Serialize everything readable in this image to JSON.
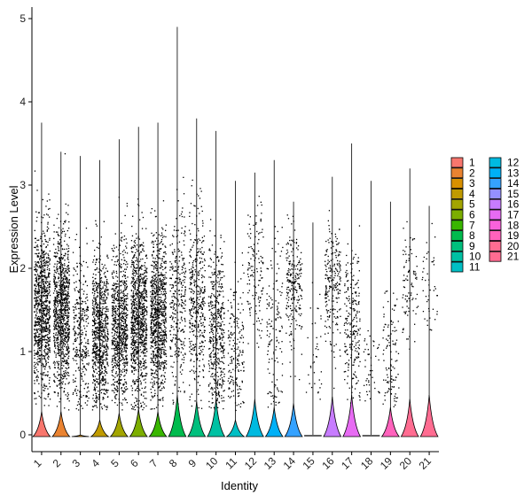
{
  "chart_data": {
    "type": "violin",
    "xlabel": "Identity",
    "ylabel": "Expression Level",
    "ylim": [
      -0.25,
      5.2
    ],
    "yticks": [
      0,
      1,
      2,
      3,
      4,
      5
    ],
    "categories": [
      "1",
      "2",
      "3",
      "4",
      "5",
      "6",
      "7",
      "8",
      "9",
      "10",
      "11",
      "12",
      "13",
      "14",
      "15",
      "16",
      "17",
      "18",
      "19",
      "20",
      "21"
    ],
    "series": [
      {
        "name": "1",
        "color": "#F8766D",
        "max": 3.75,
        "zero_bulb": 0.3,
        "density": 1.0,
        "center": 1.5,
        "spread": 0.8
      },
      {
        "name": "2",
        "color": "#EA8331",
        "max": 3.4,
        "zero_bulb": 0.3,
        "density": 1.0,
        "center": 1.5,
        "spread": 0.8
      },
      {
        "name": "3",
        "color": "#D89000",
        "max": 3.35,
        "zero_bulb": 0.02,
        "density": 0.35,
        "center": 1.2,
        "spread": 0.8
      },
      {
        "name": "4",
        "color": "#C09B00",
        "max": 3.3,
        "zero_bulb": 0.2,
        "density": 0.85,
        "center": 1.2,
        "spread": 0.8
      },
      {
        "name": "5",
        "color": "#A3A500",
        "max": 3.55,
        "zero_bulb": 0.28,
        "density": 0.85,
        "center": 1.3,
        "spread": 0.8
      },
      {
        "name": "6",
        "color": "#7CAE00",
        "max": 3.7,
        "zero_bulb": 0.33,
        "density": 1.0,
        "center": 1.4,
        "spread": 0.8
      },
      {
        "name": "7",
        "color": "#39B600",
        "max": 3.75,
        "zero_bulb": 0.3,
        "density": 0.95,
        "center": 1.4,
        "spread": 0.8
      },
      {
        "name": "8",
        "color": "#00BB4E",
        "max": 4.9,
        "zero_bulb": 0.5,
        "density": 0.35,
        "center": 1.6,
        "spread": 0.9
      },
      {
        "name": "9",
        "color": "#00BF7D",
        "max": 3.8,
        "zero_bulb": 0.42,
        "density": 0.45,
        "center": 1.6,
        "spread": 0.9
      },
      {
        "name": "10",
        "color": "#00C1A3",
        "max": 3.65,
        "zero_bulb": 0.45,
        "density": 0.5,
        "center": 1.2,
        "spread": 0.9
      },
      {
        "name": "11",
        "color": "#00BFC4",
        "max": 3.05,
        "zero_bulb": 0.2,
        "density": 0.2,
        "center": 1.0,
        "spread": 0.8
      },
      {
        "name": "12",
        "color": "#00BAE0",
        "max": 3.15,
        "zero_bulb": 0.45,
        "density": 0.15,
        "center": 1.9,
        "spread": 0.7
      },
      {
        "name": "13",
        "color": "#00B0F6",
        "max": 3.3,
        "zero_bulb": 0.35,
        "density": 0.15,
        "center": 1.2,
        "spread": 0.9
      },
      {
        "name": "14",
        "color": "#35A2FF",
        "max": 2.8,
        "zero_bulb": 0.4,
        "density": 0.25,
        "center": 1.8,
        "spread": 0.6
      },
      {
        "name": "15",
        "color": "#9590FF",
        "max": 2.55,
        "zero_bulb": 0.0,
        "density": 0.04,
        "center": 1.0,
        "spread": 0.8
      },
      {
        "name": "16",
        "color": "#C77CFF",
        "max": 3.1,
        "zero_bulb": 0.48,
        "density": 0.25,
        "center": 1.8,
        "spread": 0.6
      },
      {
        "name": "17",
        "color": "#E76BF3",
        "max": 3.5,
        "zero_bulb": 0.5,
        "density": 0.25,
        "center": 1.3,
        "spread": 0.8
      },
      {
        "name": "18",
        "color": "#FA62DB",
        "max": 3.05,
        "zero_bulb": 0.0,
        "density": 0.05,
        "center": 0.8,
        "spread": 0.6
      },
      {
        "name": "19",
        "color": "#FF62BC",
        "max": 2.8,
        "zero_bulb": 0.35,
        "density": 0.12,
        "center": 1.0,
        "spread": 0.7
      },
      {
        "name": "20",
        "color": "#FF6C91",
        "max": 3.2,
        "zero_bulb": 0.45,
        "density": 0.1,
        "center": 1.8,
        "spread": 0.6
      },
      {
        "name": "21",
        "color": "#FF6C91",
        "max": 2.75,
        "zero_bulb": 0.5,
        "density": 0.05,
        "center": 1.8,
        "spread": 0.6
      }
    ],
    "legend": {
      "position": "right",
      "columns": 2
    }
  }
}
